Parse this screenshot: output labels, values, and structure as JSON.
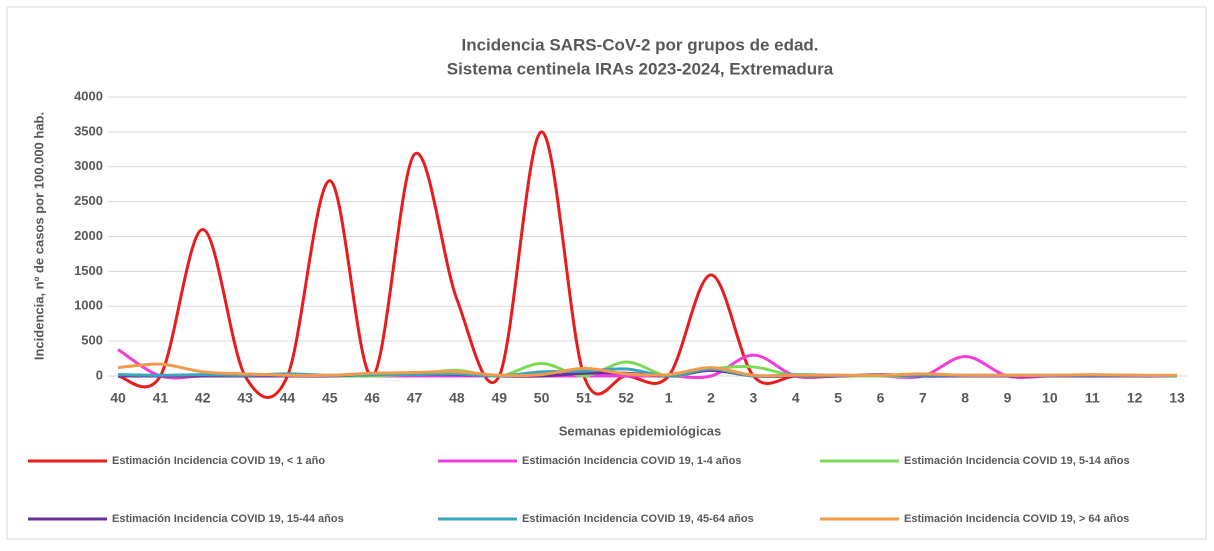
{
  "chart_data": {
    "type": "line",
    "title": [
      "Incidencia SARS-CoV-2 por grupos de edad.",
      "Sistema centinela IRAs 2023-2024, Extremadura"
    ],
    "xlabel": "Semanas epidemiológicas",
    "ylabel": "Incidencia, nº de casos por 100.000 hab.",
    "categories": [
      "40",
      "41",
      "42",
      "43",
      "44",
      "45",
      "46",
      "47",
      "48",
      "49",
      "50",
      "51",
      "52",
      "1",
      "2",
      "3",
      "4",
      "5",
      "6",
      "7",
      "8",
      "9",
      "10",
      "11",
      "12",
      "13"
    ],
    "ylim": [
      0,
      4000
    ],
    "yticks": [
      0,
      500,
      1000,
      1500,
      2000,
      2500,
      3000,
      3500,
      4000
    ],
    "grid": true,
    "smooth": true,
    "legend": "bottom",
    "series": [
      {
        "name": "Estimación Incidencia COVID 19, < 1 año",
        "color": "#e81c1c",
        "values": [
          0,
          0,
          2100,
          0,
          0,
          2800,
          0,
          3180,
          1100,
          0,
          3500,
          0,
          0,
          0,
          1450,
          0,
          0,
          0,
          0,
          0,
          0,
          0,
          0,
          0,
          0,
          0
        ]
      },
      {
        "name": "Estimación Incidencia COVID 19, 1-4 años",
        "color": "#f23ddc",
        "values": [
          380,
          0,
          0,
          0,
          0,
          0,
          0,
          0,
          0,
          0,
          0,
          0,
          0,
          0,
          0,
          300,
          0,
          0,
          0,
          0,
          280,
          0,
          0,
          0,
          0,
          0
        ]
      },
      {
        "name": "Estimación Incidencia COVID 19, 5-14 años",
        "color": "#7ed957",
        "values": [
          0,
          0,
          0,
          0,
          0,
          0,
          0,
          30,
          80,
          0,
          180,
          0,
          200,
          0,
          100,
          130,
          0,
          0,
          0,
          0,
          0,
          0,
          0,
          0,
          0,
          0
        ]
      },
      {
        "name": "Estimación Incidencia COVID 19, 15-44 años",
        "color": "#6a2ea0",
        "values": [
          0,
          0,
          0,
          0,
          0,
          0,
          20,
          20,
          20,
          0,
          0,
          40,
          40,
          0,
          80,
          0,
          0,
          0,
          20,
          0,
          0,
          0,
          0,
          0,
          0,
          0
        ]
      },
      {
        "name": "Estimación Incidencia COVID 19, 45-64 años",
        "color": "#3aa6b9",
        "values": [
          20,
          10,
          20,
          10,
          30,
          10,
          20,
          20,
          30,
          0,
          60,
          70,
          100,
          0,
          100,
          0,
          20,
          10,
          10,
          10,
          10,
          10,
          10,
          10,
          10,
          0
        ]
      },
      {
        "name": "Estimación Incidencia COVID 19, > 64 años",
        "color": "#f39a4a",
        "values": [
          120,
          170,
          60,
          30,
          10,
          10,
          40,
          50,
          60,
          10,
          20,
          110,
          30,
          20,
          120,
          10,
          10,
          10,
          10,
          30,
          10,
          10,
          10,
          20,
          10,
          10
        ]
      }
    ]
  }
}
